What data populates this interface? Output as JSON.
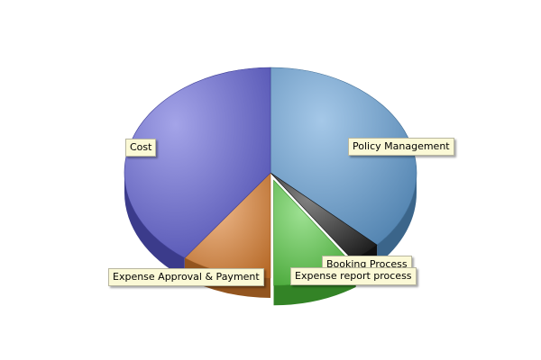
{
  "chart_data": {
    "type": "pie",
    "style": "3d",
    "series": [
      {
        "label": "Policy Management",
        "value": 37,
        "color": "#5b9bd5",
        "exploded": false
      },
      {
        "label": "Booking Process",
        "value": 3.5,
        "color": "#1a1a1a",
        "exploded": false
      },
      {
        "label": "Expense report process",
        "value": 9.5,
        "color": "#4fc93a",
        "exploded": true
      },
      {
        "label": "Expense Approval & Payment",
        "value": 10,
        "color": "#e2822f",
        "exploded": false
      },
      {
        "label": "Cost",
        "value": 40,
        "color": "#5a5ad6",
        "exploded": false
      }
    ],
    "legend": "none",
    "labels": "on-slices"
  }
}
